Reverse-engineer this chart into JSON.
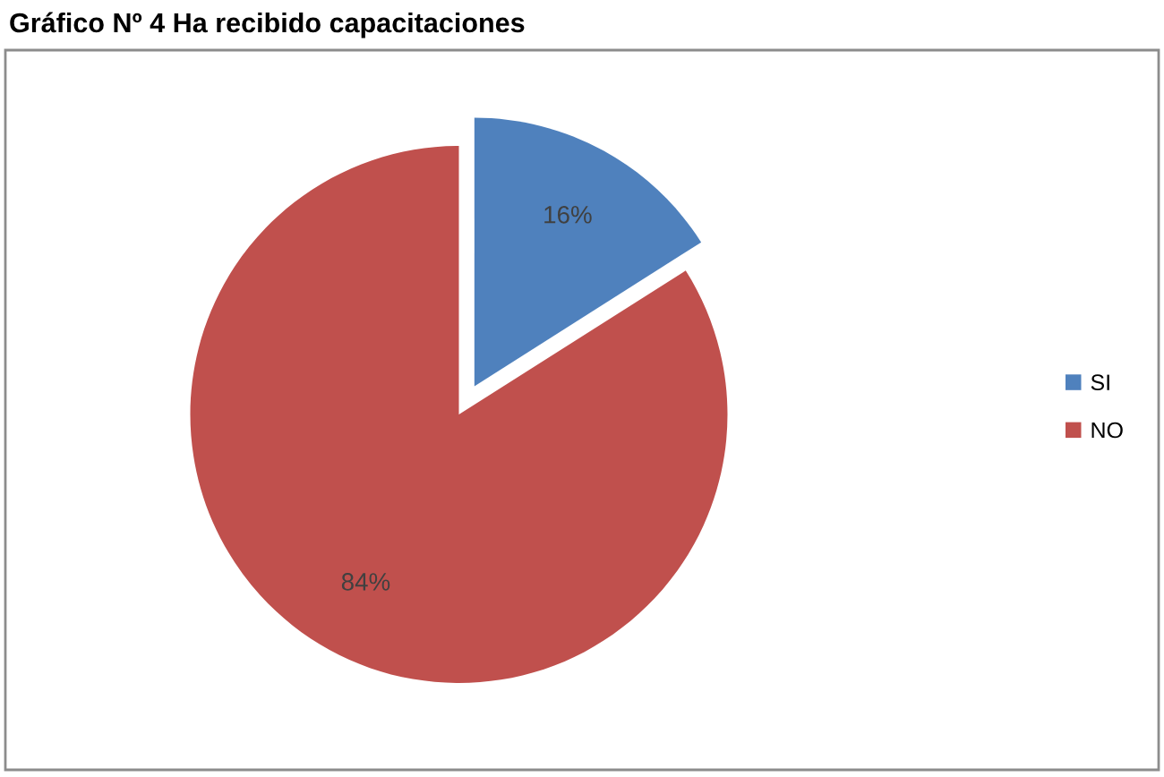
{
  "chart_data": {
    "type": "pie",
    "title": "Gráfico Nº 4 Ha recibido capacitaciones",
    "categories": [
      "SI",
      "NO"
    ],
    "values": [
      16,
      84
    ],
    "colors": [
      "#4f81bd",
      "#c0504d"
    ],
    "value_labels": [
      "16%",
      "84%"
    ],
    "legend": "right"
  }
}
